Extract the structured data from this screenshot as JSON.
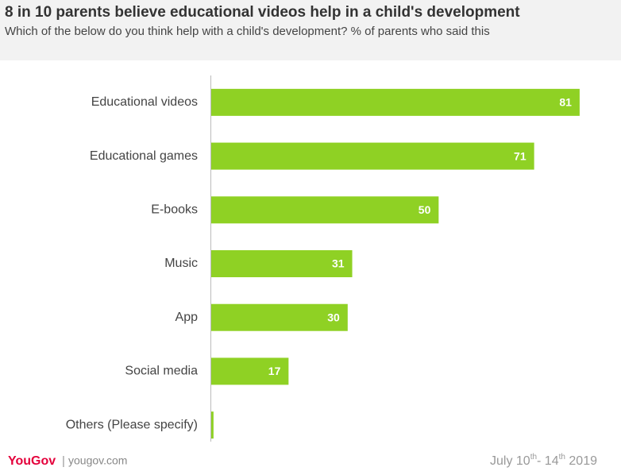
{
  "chart_data": {
    "type": "hbar",
    "title": "8 in 10 parents believe educational videos help in a child's development",
    "subtitle": "Which of the below do you think help with a child's development? % of parents who said this",
    "categories": [
      "Educational videos",
      "Educational games",
      "E-books",
      "Music",
      "App",
      "Social media",
      "Others (Please specify)"
    ],
    "values": [
      81,
      71,
      50,
      31,
      30,
      17,
      0.5
    ],
    "value_labels": [
      "81",
      "71",
      "50",
      "31",
      "30",
      "17",
      null
    ],
    "color": "#8fd124",
    "xlim": [
      0,
      88
    ]
  },
  "footer": {
    "brand": "YouGov",
    "separator": "|",
    "site": "yougov.com",
    "date_parts": [
      "July 10",
      "th",
      "- 14",
      "th",
      " 2019"
    ]
  }
}
